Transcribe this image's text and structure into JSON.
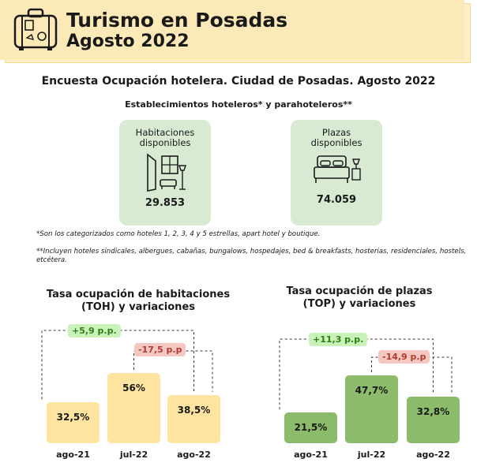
{
  "header": {
    "title_line1": "Turismo en Posadas",
    "title_line2": "Agosto 2022",
    "icon": "suitcase-icon"
  },
  "survey_title": "Encuesta Ocupación hotelera. Ciudad de Posadas. Agosto 2022",
  "establishments_title": "Establecimientos hoteleros* y parahoteleros**",
  "cards": [
    {
      "label": "Habitaciones disponibles",
      "value": "29.853",
      "icon": "room-icon"
    },
    {
      "label": "Plazas disponibles",
      "value": "74.059",
      "icon": "bed-icon"
    }
  ],
  "notes": {
    "note1": "*Son los categorizados como hoteles 1, 2, 3, 4 y 5 estrellas, apart hotel y boutique.",
    "note2": "**Incluyen hoteles sindicales, albergues, cabañas, bungalows, hospedajes, bed & breakfasts, hosterias, residenciales, hostels, etcétera."
  },
  "colors": {
    "toh_bar": "#ffe4a1",
    "top_bar": "#8cbc6b",
    "header_bg": "#fbeab8",
    "card_bg": "#d9ead3",
    "positive_badge": "#c9f2b8",
    "negative_badge": "#f4c8c0"
  },
  "chart_data": [
    {
      "type": "bar",
      "title": "Tasa ocupación de habitaciones (TOH) y variaciones",
      "categories": [
        "ago-21",
        "jul-22",
        "ago-22"
      ],
      "values": [
        32.5,
        56,
        38.5
      ],
      "value_labels": [
        "32,5%",
        "56%",
        "38,5%"
      ],
      "unit": "%",
      "annotations": [
        {
          "label": "+5,9 p.p.",
          "from": "ago-21",
          "to": "ago-22",
          "sign": "positive"
        },
        {
          "label": "-17,5 p.p",
          "from": "jul-22",
          "to": "ago-22",
          "sign": "negative"
        }
      ],
      "ylim": [
        0,
        56
      ]
    },
    {
      "type": "bar",
      "title": "Tasa ocupación de plazas (TOP) y variaciones",
      "categories": [
        "ago-21",
        "jul-22",
        "ago-22"
      ],
      "values": [
        21.5,
        47.7,
        32.8
      ],
      "value_labels": [
        "21,5%",
        "47,7%",
        "32,8%"
      ],
      "unit": "%",
      "annotations": [
        {
          "label": "+11,3 p.p.",
          "from": "ago-21",
          "to": "ago-22",
          "sign": "positive"
        },
        {
          "label": "-14,9 p.p",
          "from": "jul-22",
          "to": "ago-22",
          "sign": "negative"
        }
      ],
      "ylim": [
        0,
        47.7
      ]
    }
  ]
}
